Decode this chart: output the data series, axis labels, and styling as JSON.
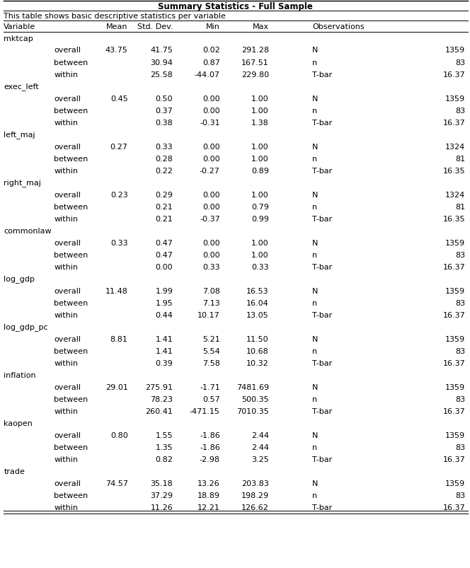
{
  "title": "Summary Statistics - Full Sample",
  "subtitle": "This table shows basic descriptive statistics per variable",
  "rows": [
    {
      "var": "mktcap",
      "type": "header",
      "mean": "",
      "std": "",
      "min": "",
      "max": "",
      "obs_label": "",
      "obs_val": ""
    },
    {
      "var": "",
      "type": "overall",
      "mean": "43.75",
      "std": "41.75",
      "min": "0.02",
      "max": "291.28",
      "obs_label": "N",
      "obs_val": "1359"
    },
    {
      "var": "",
      "type": "between",
      "mean": "",
      "std": "30.94",
      "min": "0.87",
      "max": "167.51",
      "obs_label": "n",
      "obs_val": "83"
    },
    {
      "var": "",
      "type": "within",
      "mean": "",
      "std": "25.58",
      "min": "-44.07",
      "max": "229.80",
      "obs_label": "T-bar",
      "obs_val": "16.37"
    },
    {
      "var": "exec_left",
      "type": "header",
      "mean": "",
      "std": "",
      "min": "",
      "max": "",
      "obs_label": "",
      "obs_val": ""
    },
    {
      "var": "",
      "type": "overall",
      "mean": "0.45",
      "std": "0.50",
      "min": "0.00",
      "max": "1.00",
      "obs_label": "N",
      "obs_val": "1359"
    },
    {
      "var": "",
      "type": "between",
      "mean": "",
      "std": "0.37",
      "min": "0.00",
      "max": "1.00",
      "obs_label": "n",
      "obs_val": "83"
    },
    {
      "var": "",
      "type": "within",
      "mean": "",
      "std": "0.38",
      "min": "-0.31",
      "max": "1.38",
      "obs_label": "T-bar",
      "obs_val": "16.37"
    },
    {
      "var": "left_maj",
      "type": "header",
      "mean": "",
      "std": "",
      "min": "",
      "max": "",
      "obs_label": "",
      "obs_val": ""
    },
    {
      "var": "",
      "type": "overall",
      "mean": "0.27",
      "std": "0.33",
      "min": "0.00",
      "max": "1.00",
      "obs_label": "N",
      "obs_val": "1324"
    },
    {
      "var": "",
      "type": "between",
      "mean": "",
      "std": "0.28",
      "min": "0.00",
      "max": "1.00",
      "obs_label": "n",
      "obs_val": "81"
    },
    {
      "var": "",
      "type": "within",
      "mean": "",
      "std": "0.22",
      "min": "-0.27",
      "max": "0.89",
      "obs_label": "T-bar",
      "obs_val": "16.35"
    },
    {
      "var": "right_maj",
      "type": "header",
      "mean": "",
      "std": "",
      "min": "",
      "max": "",
      "obs_label": "",
      "obs_val": ""
    },
    {
      "var": "",
      "type": "overall",
      "mean": "0.23",
      "std": "0.29",
      "min": "0.00",
      "max": "1.00",
      "obs_label": "N",
      "obs_val": "1324"
    },
    {
      "var": "",
      "type": "between",
      "mean": "",
      "std": "0.21",
      "min": "0.00",
      "max": "0.79",
      "obs_label": "n",
      "obs_val": "81"
    },
    {
      "var": "",
      "type": "within",
      "mean": "",
      "std": "0.21",
      "min": "-0.37",
      "max": "0.99",
      "obs_label": "T-bar",
      "obs_val": "16.35"
    },
    {
      "var": "commonlaw",
      "type": "header",
      "mean": "",
      "std": "",
      "min": "",
      "max": "",
      "obs_label": "",
      "obs_val": ""
    },
    {
      "var": "",
      "type": "overall",
      "mean": "0.33",
      "std": "0.47",
      "min": "0.00",
      "max": "1.00",
      "obs_label": "N",
      "obs_val": "1359"
    },
    {
      "var": "",
      "type": "between",
      "mean": "",
      "std": "0.47",
      "min": "0.00",
      "max": "1.00",
      "obs_label": "n",
      "obs_val": "83"
    },
    {
      "var": "",
      "type": "within",
      "mean": "",
      "std": "0.00",
      "min": "0.33",
      "max": "0.33",
      "obs_label": "T-bar",
      "obs_val": "16.37"
    },
    {
      "var": "log_gdp",
      "type": "header",
      "mean": "",
      "std": "",
      "min": "",
      "max": "",
      "obs_label": "",
      "obs_val": ""
    },
    {
      "var": "",
      "type": "overall",
      "mean": "11.48",
      "std": "1.99",
      "min": "7.08",
      "max": "16.53",
      "obs_label": "N",
      "obs_val": "1359"
    },
    {
      "var": "",
      "type": "between",
      "mean": "",
      "std": "1.95",
      "min": "7.13",
      "max": "16.04",
      "obs_label": "n",
      "obs_val": "83"
    },
    {
      "var": "",
      "type": "within",
      "mean": "",
      "std": "0.44",
      "min": "10.17",
      "max": "13.05",
      "obs_label": "T-bar",
      "obs_val": "16.37"
    },
    {
      "var": "log_gdp_pc",
      "type": "header",
      "mean": "",
      "std": "",
      "min": "",
      "max": "",
      "obs_label": "",
      "obs_val": ""
    },
    {
      "var": "",
      "type": "overall",
      "mean": "8.81",
      "std": "1.41",
      "min": "5.21",
      "max": "11.50",
      "obs_label": "N",
      "obs_val": "1359"
    },
    {
      "var": "",
      "type": "between",
      "mean": "",
      "std": "1.41",
      "min": "5.54",
      "max": "10.68",
      "obs_label": "n",
      "obs_val": "83"
    },
    {
      "var": "",
      "type": "within",
      "mean": "",
      "std": "0.39",
      "min": "7.58",
      "max": "10.32",
      "obs_label": "T-bar",
      "obs_val": "16.37"
    },
    {
      "var": "inflation",
      "type": "header",
      "mean": "",
      "std": "",
      "min": "",
      "max": "",
      "obs_label": "",
      "obs_val": ""
    },
    {
      "var": "",
      "type": "overall",
      "mean": "29.01",
      "std": "275.91",
      "min": "-1.71",
      "max": "7481.69",
      "obs_label": "N",
      "obs_val": "1359"
    },
    {
      "var": "",
      "type": "between",
      "mean": "",
      "std": "78.23",
      "min": "0.57",
      "max": "500.35",
      "obs_label": "n",
      "obs_val": "83"
    },
    {
      "var": "",
      "type": "within",
      "mean": "",
      "std": "260.41",
      "min": "-471.15",
      "max": "7010.35",
      "obs_label": "T-bar",
      "obs_val": "16.37"
    },
    {
      "var": "kaopen",
      "type": "header",
      "mean": "",
      "std": "",
      "min": "",
      "max": "",
      "obs_label": "",
      "obs_val": ""
    },
    {
      "var": "",
      "type": "overall",
      "mean": "0.80",
      "std": "1.55",
      "min": "-1.86",
      "max": "2.44",
      "obs_label": "N",
      "obs_val": "1359"
    },
    {
      "var": "",
      "type": "between",
      "mean": "",
      "std": "1.35",
      "min": "-1.86",
      "max": "2.44",
      "obs_label": "n",
      "obs_val": "83"
    },
    {
      "var": "",
      "type": "within",
      "mean": "",
      "std": "0.82",
      "min": "-2.98",
      "max": "3.25",
      "obs_label": "T-bar",
      "obs_val": "16.37"
    },
    {
      "var": "trade",
      "type": "header",
      "mean": "",
      "std": "",
      "min": "",
      "max": "",
      "obs_label": "",
      "obs_val": ""
    },
    {
      "var": "",
      "type": "overall",
      "mean": "74.57",
      "std": "35.18",
      "min": "13.26",
      "max": "203.83",
      "obs_label": "N",
      "obs_val": "1359"
    },
    {
      "var": "",
      "type": "between",
      "mean": "",
      "std": "37.29",
      "min": "18.89",
      "max": "198.29",
      "obs_label": "n",
      "obs_val": "83"
    },
    {
      "var": "",
      "type": "within",
      "mean": "",
      "std": "11.26",
      "min": "12.21",
      "max": "126.62",
      "obs_label": "T-bar",
      "obs_val": "16.37"
    }
  ],
  "bg_color": "#ffffff",
  "text_color": "#000000",
  "title_fontsize": 8.5,
  "body_fontsize": 8.0,
  "col_var": 0.008,
  "col_sub": 0.115,
  "col_mean": 0.272,
  "col_std": 0.368,
  "col_min": 0.468,
  "col_max": 0.572,
  "col_obs_label": 0.664,
  "col_obs_val": 0.99
}
